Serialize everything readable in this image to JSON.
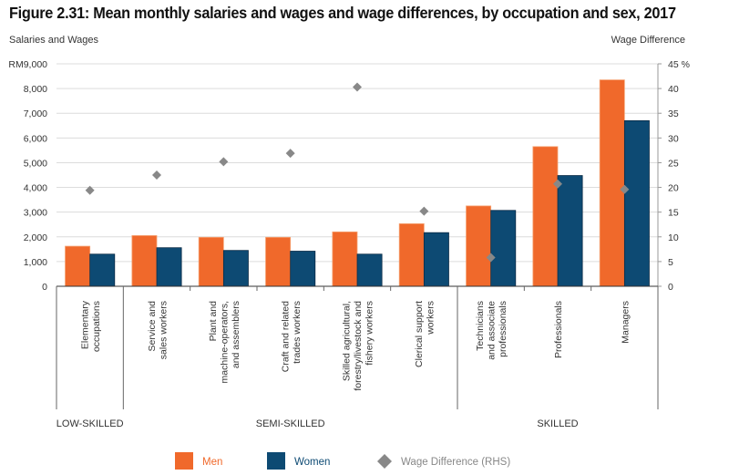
{
  "chart_data": {
    "type": "bar",
    "title": "Figure 2.31: Mean monthly salaries and wages and wage differences, by occupation and sex, 2017",
    "ylabel": "Salaries and Wages",
    "y2label": "Wage Difference",
    "ylim": [
      0,
      9000
    ],
    "y2lim": [
      0,
      45
    ],
    "yticks": [
      "0",
      "1,000",
      "2,000",
      "3,000",
      "4,000",
      "5,000",
      "6,000",
      "7,000",
      "8,000",
      "RM9,000"
    ],
    "y2ticks": [
      "0",
      "5",
      "10",
      "15",
      "20",
      "25",
      "30",
      "35",
      "40",
      "45 %"
    ],
    "grid": true,
    "legend_position": "bottom",
    "categories": [
      [
        "Elementary",
        "occupations"
      ],
      [
        "Service and",
        "sales workers"
      ],
      [
        "Plant and",
        "machine-operators,",
        "and assemblers"
      ],
      [
        "Craft and related",
        "trades workers"
      ],
      [
        "Skilled agricultural,",
        "forestry/livestock and",
        "fishery workers"
      ],
      [
        "Clerical support",
        "workers"
      ],
      [
        "Technicians",
        "and associate",
        "professionals"
      ],
      [
        "Professionals"
      ],
      [
        "Managers"
      ]
    ],
    "groups": [
      {
        "label": "LOW-SKILLED",
        "count": 1
      },
      {
        "label": "SEMI-SKILLED",
        "count": 5
      },
      {
        "label": "SKILLED",
        "count": 3
      }
    ],
    "series": [
      {
        "name": "Men",
        "type": "bar",
        "axis": "left",
        "color": "#f0692b",
        "values": [
          1620,
          2050,
          1980,
          1980,
          2200,
          2530,
          3250,
          5650,
          8350
        ]
      },
      {
        "name": "Women",
        "type": "bar",
        "axis": "left",
        "color": "#0d4a73",
        "values": [
          1300,
          1560,
          1450,
          1420,
          1300,
          2170,
          3070,
          4480,
          6700
        ]
      },
      {
        "name": "Wage Difference (RHS)",
        "type": "scatter",
        "marker": "diamond",
        "axis": "right",
        "color": "#888888",
        "values": [
          19.4,
          22.5,
          25.2,
          26.9,
          40.3,
          15.2,
          5.8,
          20.7,
          19.6
        ]
      }
    ]
  }
}
